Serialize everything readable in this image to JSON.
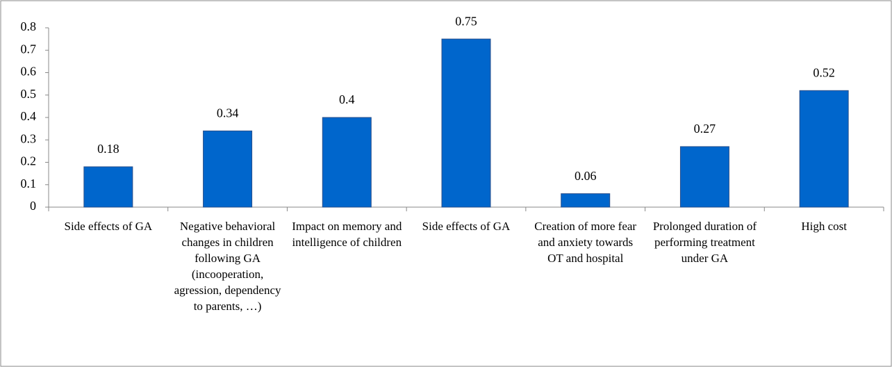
{
  "chart_data": {
    "type": "bar",
    "categories": [
      "Side effects of GA",
      "Negative behavioral changes in children following GA (incooperation, agression, dependency to parents, …)",
      "Impact on memory and intelligence of children",
      "Side effects of GA",
      "Creation of more fear and anxiety towards OT and hospital",
      "Prolonged duration of performing treatment under GA",
      "High cost"
    ],
    "values": [
      0.18,
      0.34,
      0.4,
      0.75,
      0.06,
      0.27,
      0.52
    ],
    "color": "#0066cc",
    "ylim": [
      0,
      0.8
    ],
    "yticks": [
      0,
      0.1,
      0.2,
      0.3,
      0.4,
      0.5,
      0.6,
      0.7,
      0.8
    ],
    "grid": false
  }
}
